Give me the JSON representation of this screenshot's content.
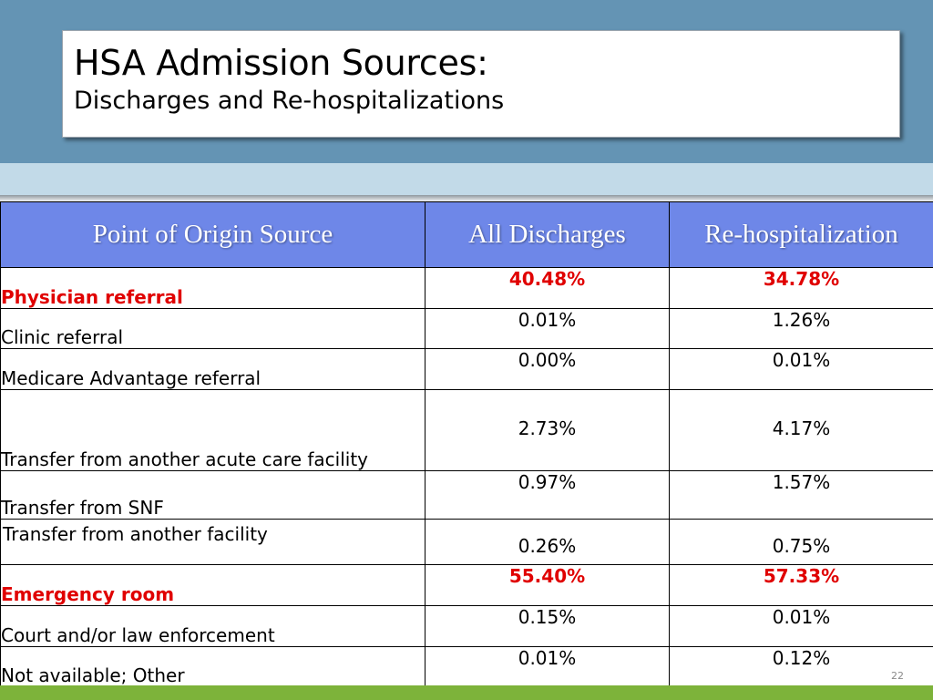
{
  "slide": {
    "title": "HSA Admission Sources:",
    "subtitle": "Discharges and Re-hospitalizations",
    "page_number": "22"
  },
  "table": {
    "headers": [
      "Point of Origin Source",
      "All Discharges",
      "Re-hospitalization"
    ],
    "rows": [
      {
        "source": "Physician referral",
        "all_discharges": "40.48%",
        "rehospitalization": "34.78%",
        "highlight": true
      },
      {
        "source": "Clinic referral",
        "all_discharges": "0.01%",
        "rehospitalization": "1.26%",
        "highlight": false
      },
      {
        "source": "Medicare Advantage referral",
        "all_discharges": "0.00%",
        "rehospitalization": "0.01%",
        "highlight": false
      },
      {
        "source": "Transfer from another acute care facility",
        "all_discharges": "2.73%",
        "rehospitalization": "4.17%",
        "highlight": false
      },
      {
        "source": "Transfer from SNF",
        "all_discharges": "0.97%",
        "rehospitalization": "1.57%",
        "highlight": false
      },
      {
        "source": "Transfer from another facility",
        "all_discharges": "0.26%",
        "rehospitalization": "0.75%",
        "highlight": false
      },
      {
        "source": "Emergency room",
        "all_discharges": "55.40%",
        "rehospitalization": "57.33%",
        "highlight": true
      },
      {
        "source": "Court and/or law enforcement",
        "all_discharges": "0.15%",
        "rehospitalization": "0.01%",
        "highlight": false
      },
      {
        "source": "Not available; Other",
        "all_discharges": "0.01%",
        "rehospitalization": "0.12%",
        "highlight": false
      }
    ]
  },
  "colors": {
    "header_band": "#6494b4",
    "light_band": "#c2dae8",
    "table_header": "#6e87e8",
    "highlight_text": "#e00000",
    "bottom_bar": "#7db33a"
  }
}
